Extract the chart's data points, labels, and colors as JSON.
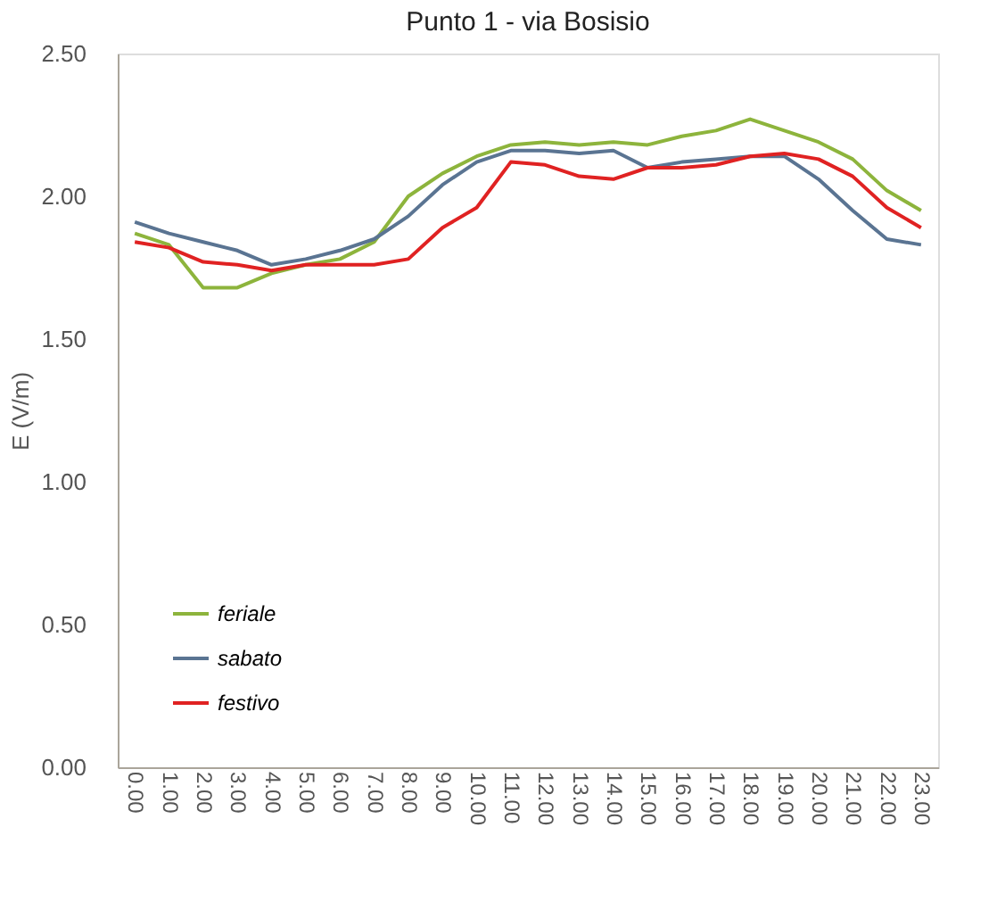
{
  "chart_data": {
    "type": "line",
    "title": "Punto 1 - via Bosisio",
    "ylabel": "E (V/m)",
    "categories": [
      "0.00",
      "1.00",
      "2.00",
      "3.00",
      "4.00",
      "5.00",
      "6.00",
      "7.00",
      "8.00",
      "9.00",
      "10.00",
      "11.00",
      "12.00",
      "13.00",
      "14.00",
      "15.00",
      "16.00",
      "17.00",
      "18.00",
      "19.00",
      "20.00",
      "21.00",
      "22.00",
      "23.00"
    ],
    "series": [
      {
        "name": "feriale",
        "color": "#8db43c",
        "values": [
          1.87,
          1.83,
          1.68,
          1.68,
          1.73,
          1.76,
          1.78,
          1.84,
          2.0,
          2.08,
          2.14,
          2.18,
          2.19,
          2.18,
          2.19,
          2.18,
          2.21,
          2.23,
          2.27,
          2.23,
          2.19,
          2.13,
          2.02,
          1.95
        ]
      },
      {
        "name": "sabato",
        "color": "#5a7492",
        "values": [
          1.91,
          1.87,
          1.84,
          1.81,
          1.76,
          1.78,
          1.81,
          1.85,
          1.93,
          2.04,
          2.12,
          2.16,
          2.16,
          2.15,
          2.16,
          2.1,
          2.12,
          2.13,
          2.14,
          2.14,
          2.06,
          1.95,
          1.85,
          1.83
        ]
      },
      {
        "name": "festivo",
        "color": "#e02222",
        "values": [
          1.84,
          1.82,
          1.77,
          1.76,
          1.74,
          1.76,
          1.76,
          1.76,
          1.78,
          1.89,
          1.96,
          2.12,
          2.11,
          2.07,
          2.06,
          2.1,
          2.1,
          2.11,
          2.14,
          2.15,
          2.13,
          2.07,
          1.96,
          1.89
        ]
      }
    ],
    "ylim": [
      0,
      2.5
    ],
    "yticks": [
      {
        "value": 0,
        "label": "0.00"
      },
      {
        "value": 0.5,
        "label": "0.50"
      },
      {
        "value": 1,
        "label": "1.00"
      },
      {
        "value": 1.5,
        "label": "1.50"
      },
      {
        "value": 2,
        "label": "2.00"
      },
      {
        "value": 2.5,
        "label": "2.50"
      }
    ],
    "grid": false,
    "legend": "bottom left",
    "line_style": "solid",
    "marker": "none"
  }
}
